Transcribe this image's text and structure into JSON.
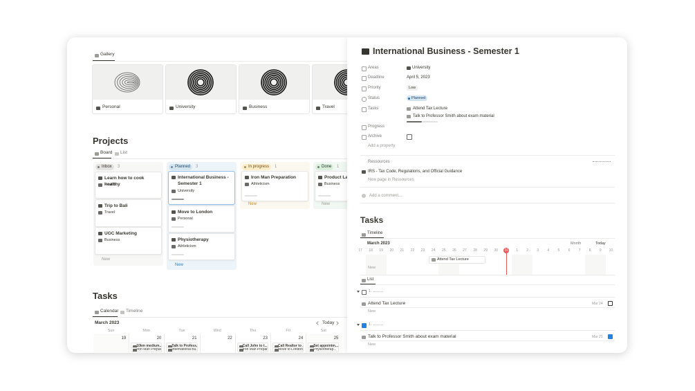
{
  "gallery": {
    "tab": "Gallery",
    "cards": [
      "Personal",
      "University",
      "Business",
      "Travel"
    ]
  },
  "projects": {
    "title": "Projects",
    "views": [
      "Board",
      "List"
    ],
    "columns": [
      {
        "name": "Inbox",
        "count": 3,
        "cards": [
          {
            "title": "Learn how to cook healthy",
            "area": "Health"
          },
          {
            "title": "Trip to Bali",
            "area": "Travel"
          },
          {
            "title": "UGC Marketing",
            "area": "Business"
          }
        ],
        "new": "New"
      },
      {
        "name": "Planned",
        "count": 3,
        "cards": [
          {
            "title": "International Business - Semester 1",
            "area": "University"
          },
          {
            "title": "Move to London",
            "area": "Personal"
          },
          {
            "title": "Physiotherapy",
            "area": "Athleticism"
          }
        ],
        "new": "New"
      },
      {
        "name": "In progress",
        "count": 1,
        "cards": [
          {
            "title": "Iron Man Preparation",
            "area": "Athleticism"
          }
        ],
        "new": "New"
      },
      {
        "name": "Done",
        "count": 1,
        "cards": [
          {
            "title": "Product Launch",
            "area": "Business"
          }
        ],
        "new": "New"
      }
    ]
  },
  "tasks": {
    "title": "Tasks",
    "views": [
      "Calendar",
      "Timeline"
    ],
    "month": "March 2023",
    "today": "Today",
    "weekdays": [
      "Sun",
      "Mon",
      "Tue",
      "Wed",
      "Thu",
      "Fri",
      "Sat"
    ],
    "days": [
      {
        "date": 19,
        "events": []
      },
      {
        "date": 20,
        "events": [
          "10km medium...",
          "Iron Man Prepar..."
        ]
      },
      {
        "date": 21,
        "events": [
          "Talk to Profess...",
          "International Bu..."
        ]
      },
      {
        "date": 22,
        "events": []
      },
      {
        "date": 23,
        "events": [
          "Call John to t...",
          "Iron Man Prepar..."
        ]
      },
      {
        "date": 24,
        "events": [
          "Call Realtor to ...",
          "Move to London"
        ]
      },
      {
        "date": 25,
        "events": [
          "Set appointm...",
          "Physiotherap..."
        ]
      }
    ]
  },
  "detail": {
    "title": "International Business - Semester 1",
    "properties": [
      {
        "label": "Areas",
        "value": "University"
      },
      {
        "label": "Deadline",
        "value": "April 5, 2023"
      },
      {
        "label": "Priority",
        "value": "Low"
      },
      {
        "label": "Status",
        "value": "Planned"
      },
      {
        "label": "Tasks",
        "values": [
          "Attend Tax Lecture",
          "Talk to Professor Smith about exam material"
        ]
      },
      {
        "label": "Progress"
      },
      {
        "label": "Archive"
      }
    ],
    "add_property": "Add a property",
    "resources": {
      "title": "Ressources",
      "items": [
        "IRS - Tax Code, Regulations, and Official Guidance"
      ],
      "new": "New page in Ressources"
    },
    "comment": "Add a comment...",
    "tasks": {
      "title": "Tasks",
      "tab": "Timeline",
      "month": "March 2023",
      "scale": "Month",
      "today": "Today",
      "dates": [
        17,
        18,
        19,
        20,
        21,
        22,
        23,
        24,
        25,
        26,
        27,
        28,
        29,
        30,
        31,
        1,
        2,
        3,
        4,
        5,
        6,
        7,
        8,
        9,
        10
      ],
      "bar": "Attend Tax Lecture",
      "new": "New",
      "list_tab": "List",
      "groups": [
        {
          "count": 1,
          "task": "Attend Tax Lecture",
          "date": "Mar 24",
          "new": "New"
        },
        {
          "count": 1,
          "task": "Talk to Professor Smith about exam material",
          "date": "Mar 21",
          "new": "New"
        }
      ]
    }
  }
}
